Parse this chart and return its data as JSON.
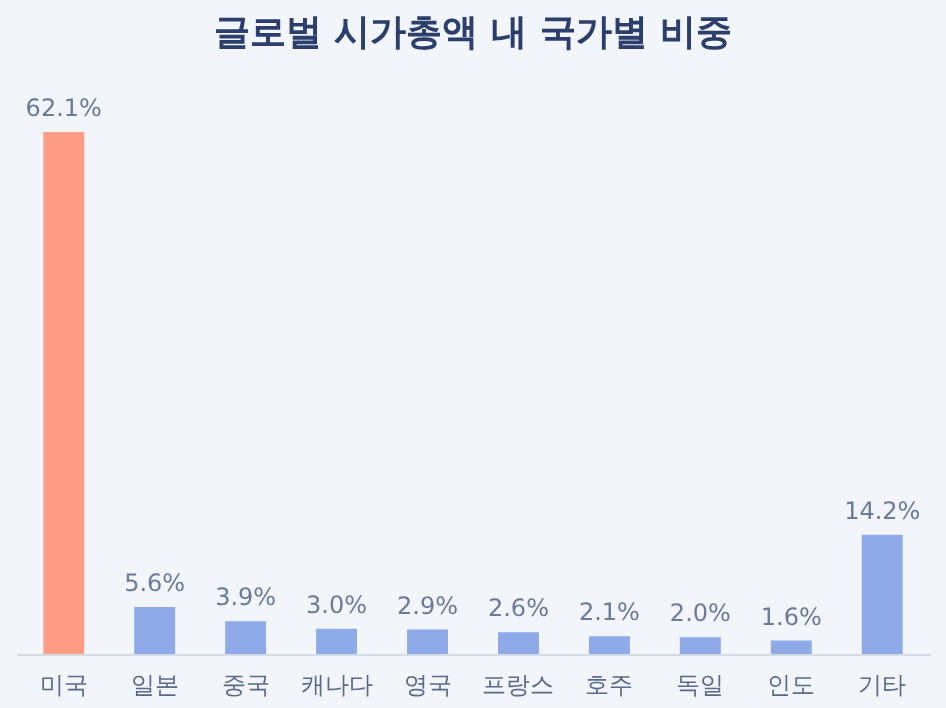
{
  "chart_data": {
    "type": "bar",
    "title": "글로벌 시가총액 내 국가별 비중",
    "categories": [
      "미국",
      "일본",
      "중국",
      "캐나다",
      "영국",
      "프랑스",
      "호주",
      "독일",
      "인도",
      "기타"
    ],
    "values": [
      62.1,
      5.6,
      3.9,
      3.0,
      2.9,
      2.6,
      2.1,
      2.0,
      1.6,
      14.2
    ],
    "value_labels": [
      "62.1%",
      "5.6%",
      "3.9%",
      "3.0%",
      "2.9%",
      "2.6%",
      "2.1%",
      "2.0%",
      "1.6%",
      "14.2%"
    ],
    "colors": [
      "#ff9c85",
      "#8eaae8",
      "#8eaae8",
      "#8eaae8",
      "#8eaae8",
      "#8eaae8",
      "#8eaae8",
      "#8eaae8",
      "#8eaae8",
      "#8eaae8"
    ],
    "grid": false
  }
}
